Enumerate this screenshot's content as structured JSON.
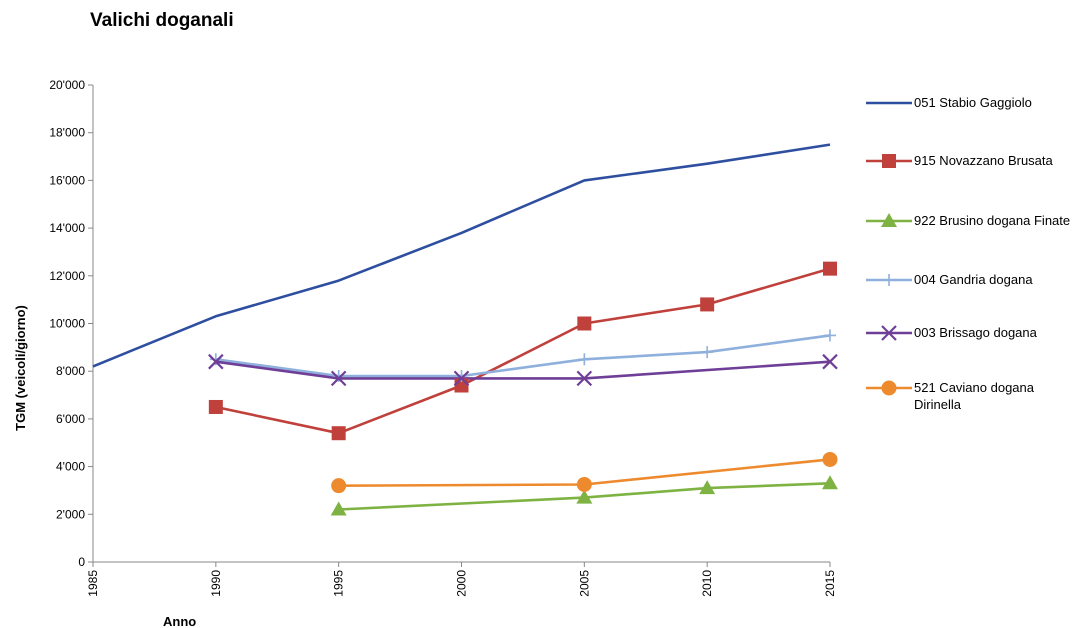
{
  "chart_data": {
    "type": "line",
    "title": "Valichi doganali",
    "xlabel": "Anno",
    "ylabel": "TGM (veicoli/giorno)",
    "x": [
      1985,
      1990,
      1995,
      2000,
      2005,
      2010,
      2015
    ],
    "x_tick_labels": [
      "1985",
      "1990",
      "1995",
      "2000",
      "2005",
      "2010",
      "2015"
    ],
    "ylim": [
      0,
      20000
    ],
    "y_ticks": [
      0,
      2000,
      4000,
      6000,
      8000,
      10000,
      12000,
      14000,
      16000,
      18000,
      20000
    ],
    "y_tick_labels": [
      "0",
      "2'000",
      "4'000",
      "6'000",
      "8'000",
      "10'000",
      "12'000",
      "14'000",
      "16'000",
      "18'000",
      "20'000"
    ],
    "grid": false,
    "legend_position": "right",
    "series": [
      {
        "name": "051 Stabio Gaggiolo",
        "color": "#2e4fa0",
        "marker": "none",
        "values": [
          8200,
          10300,
          11800,
          13800,
          16000,
          16700,
          17500
        ]
      },
      {
        "name": "915 Novazzano Brusata",
        "color": "#c0403c",
        "marker": "square",
        "values": [
          null,
          6500,
          5400,
          7400,
          10000,
          10800,
          12300
        ]
      },
      {
        "name": "922 Brusino dogana Finate",
        "color": "#7eb344",
        "marker": "triangle",
        "values": [
          null,
          null,
          2200,
          null,
          2700,
          3100,
          3300
        ]
      },
      {
        "name": "004 Gandria dogana",
        "color": "#8fb0dc",
        "marker": "plus",
        "values": [
          null,
          8500,
          7800,
          7800,
          8500,
          8800,
          9500
        ]
      },
      {
        "name": "003 Brissago dogana",
        "color": "#6f3f98",
        "marker": "x",
        "values": [
          null,
          8400,
          7700,
          7700,
          7700,
          null,
          8400
        ]
      },
      {
        "name": "521 Caviano dogana Dirinella",
        "color": "#ee8a2e",
        "marker": "circle",
        "values": [
          null,
          null,
          3200,
          null,
          3250,
          null,
          4300
        ]
      }
    ]
  }
}
